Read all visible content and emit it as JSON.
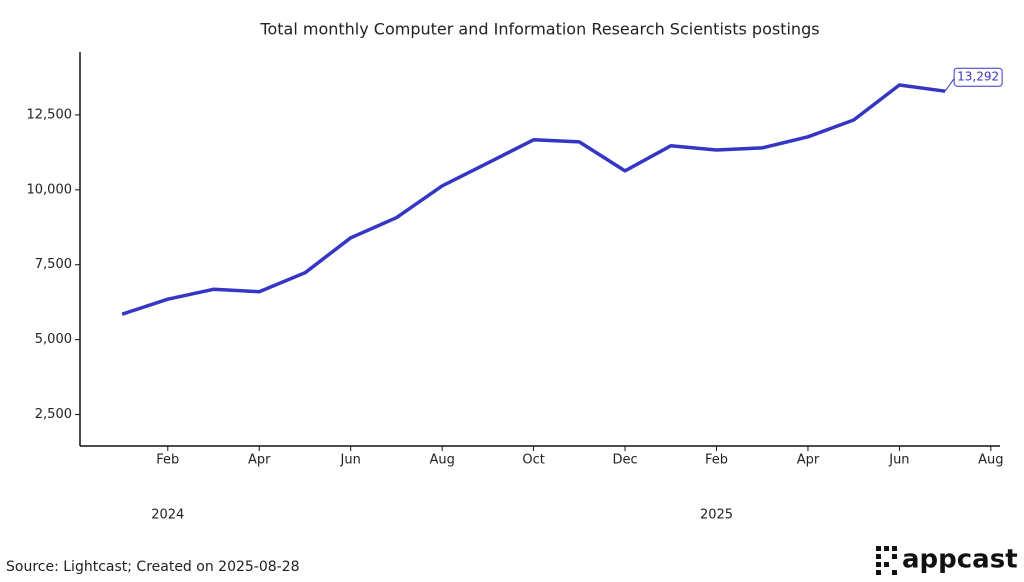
{
  "chart_data": {
    "type": "line",
    "title": "Total monthly Computer and Information Research Scientists postings",
    "x": [
      "2024-01",
      "2024-02",
      "2024-03",
      "2024-04",
      "2024-05",
      "2024-06",
      "2024-07",
      "2024-08",
      "2024-09",
      "2024-10",
      "2024-11",
      "2024-12",
      "2025-01",
      "2025-02",
      "2025-03",
      "2025-04",
      "2025-05",
      "2025-06",
      "2025-07"
    ],
    "series": [
      {
        "name": "Postings",
        "color": "#3636c4",
        "values": [
          5850,
          6350,
          6680,
          6600,
          7230,
          8400,
          9070,
          10130,
          10900,
          11670,
          11600,
          10630,
          11470,
          11330,
          11400,
          11770,
          12330,
          13500,
          13292
        ],
        "value_labels": [
          null,
          null,
          null,
          null,
          null,
          null,
          null,
          null,
          null,
          null,
          null,
          null,
          null,
          null,
          null,
          null,
          null,
          null,
          "13,292"
        ]
      }
    ],
    "xlim": [
      "2023-12",
      "2025-08"
    ],
    "xticks": [
      {
        "value": "2024-02",
        "label": "Feb"
      },
      {
        "value": "2024-04",
        "label": "Apr"
      },
      {
        "value": "2024-06",
        "label": "Jun"
      },
      {
        "value": "2024-08",
        "label": "Aug"
      },
      {
        "value": "2024-10",
        "label": "Oct"
      },
      {
        "value": "2024-12",
        "label": "Dec"
      },
      {
        "value": "2025-02",
        "label": "Feb"
      },
      {
        "value": "2025-04",
        "label": "Apr"
      },
      {
        "value": "2025-06",
        "label": "Jun"
      },
      {
        "value": "2025-08",
        "label": "Aug"
      }
    ],
    "year_labels": [
      {
        "value": "2024-02",
        "label": "2024"
      },
      {
        "value": "2025-02",
        "label": "2025"
      }
    ],
    "ylim": [
      1450,
      14600
    ],
    "yticks": [
      {
        "value": 2500,
        "label": "2,500"
      },
      {
        "value": 5000,
        "label": "5,000"
      },
      {
        "value": 7500,
        "label": "7,500"
      },
      {
        "value": 10000,
        "label": "10,000"
      },
      {
        "value": 12500,
        "label": "12,500"
      }
    ],
    "grid": false
  },
  "footer": {
    "source": "Source: Lightcast; Created on 2025-08-28",
    "logo": "appcast"
  }
}
